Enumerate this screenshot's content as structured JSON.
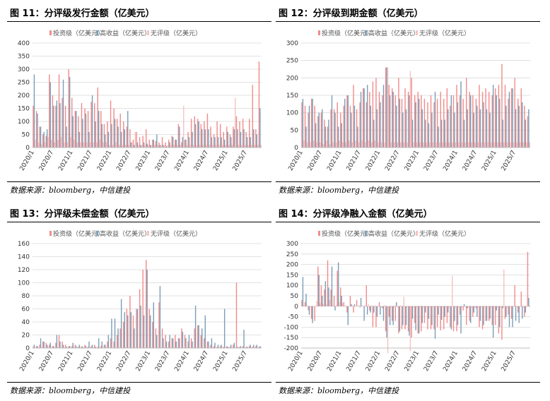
{
  "source_text": "数据来源：bloomberg，中信建投",
  "colors": {
    "investment_grade": "#f08c8c",
    "high_yield": "#7c9fb8",
    "unrated": "#f7c2c2"
  },
  "chart_data": [
    {
      "id": "fig11",
      "title": "图 11：分评级发行金额（亿美元）",
      "type": "bar",
      "ylim": [
        0,
        400
      ],
      "yticks": [
        "0",
        "50",
        "100",
        "150",
        "200",
        "250",
        "300",
        "350",
        "400"
      ],
      "x_ticklabels": [
        "2020/1",
        "2020/7",
        "2021/1",
        "2021/7",
        "2022/1",
        "2022/7",
        "2023/1",
        "2023/7",
        "2024/1",
        "2024/7",
        "2025/1",
        "2025/7"
      ],
      "x_start_month": "2020/1",
      "months": 71,
      "legend": [
        "投资级（亿美元）",
        "高收益（亿美元）",
        "无评级（亿美元）"
      ],
      "series": [
        {
          "name": "投资级（亿美元）",
          "values": [
            160,
            140,
            80,
            50,
            45,
            280,
            200,
            160,
            280,
            190,
            160,
            300,
            190,
            140,
            120,
            170,
            150,
            140,
            175,
            170,
            230,
            140,
            90,
            100,
            180,
            150,
            110,
            130,
            100,
            80,
            70,
            30,
            60,
            40,
            45,
            70,
            30,
            30,
            25,
            20,
            40,
            20,
            30,
            45,
            30,
            90,
            20,
            30,
            60,
            110,
            120,
            110,
            90,
            100,
            130,
            80,
            50,
            100,
            90,
            60,
            80,
            50,
            80,
            120,
            100,
            110,
            60,
            110,
            240,
            70,
            330
          ]
        },
        {
          "name": "高收益（亿美元）",
          "values": [
            280,
            130,
            80,
            60,
            70,
            250,
            160,
            180,
            170,
            260,
            80,
            270,
            120,
            140,
            60,
            110,
            130,
            60,
            200,
            100,
            140,
            90,
            50,
            60,
            90,
            110,
            80,
            60,
            70,
            140,
            20,
            10,
            20,
            10,
            20,
            15,
            10,
            30,
            50,
            10,
            10,
            5,
            20,
            40,
            30,
            80,
            40,
            30,
            40,
            60,
            90,
            100,
            70,
            70,
            70,
            40,
            40,
            40,
            40,
            30,
            60,
            40,
            70,
            70,
            60,
            70,
            40,
            40,
            70,
            50,
            150
          ]
        },
        {
          "name": "无评级（亿美元）",
          "values": [
            30,
            20,
            15,
            20,
            40,
            30,
            20,
            30,
            40,
            20,
            20,
            40,
            30,
            20,
            20,
            20,
            20,
            20,
            20,
            20,
            30,
            20,
            20,
            10,
            10,
            20,
            10,
            10,
            10,
            10,
            20,
            60,
            10,
            10,
            10,
            10,
            10,
            10,
            10,
            10,
            10,
            10,
            10,
            10,
            10,
            10,
            160,
            10,
            10,
            10,
            10,
            10,
            10,
            10,
            10,
            10,
            10,
            10,
            10,
            10,
            10,
            10,
            190,
            10,
            10,
            10,
            10,
            10,
            10,
            10,
            10
          ]
        }
      ]
    },
    {
      "id": "fig12",
      "title": "图 12：分评级到期金额（亿美元）",
      "type": "bar",
      "ylim": [
        0,
        300
      ],
      "yticks": [
        "0",
        "50",
        "100",
        "150",
        "200",
        "250",
        "300"
      ],
      "x_ticklabels": [
        "2020/1",
        "2020/7",
        "2021/1",
        "2021/7",
        "2022/1",
        "2022/7",
        "2023/1",
        "2023/7",
        "2024/1",
        "2024/7",
        "2025/1",
        "2025/7"
      ],
      "x_start_month": "2020/1",
      "months": 71,
      "legend": [
        "投资级（亿美元）",
        "高收益（亿美元）",
        "无评级（亿美元）"
      ],
      "series": [
        {
          "name": "投资级（亿美元）",
          "values": [
            130,
            120,
            100,
            140,
            120,
            90,
            100,
            80,
            60,
            110,
            110,
            130,
            100,
            120,
            150,
            120,
            180,
            110,
            130,
            170,
            130,
            160,
            190,
            200,
            160,
            150,
            230,
            180,
            170,
            150,
            200,
            140,
            170,
            160,
            200,
            150,
            160,
            150,
            140,
            130,
            150,
            130,
            140,
            160,
            140,
            170,
            120,
            150,
            180,
            150,
            140,
            200,
            160,
            150,
            140,
            180,
            160,
            170,
            160,
            150,
            170,
            180,
            240,
            180,
            140,
            170,
            200,
            140,
            170,
            120,
            90
          ]
        },
        {
          "name": "高收益（亿美元）",
          "values": [
            140,
            60,
            120,
            140,
            70,
            100,
            110,
            60,
            80,
            150,
            100,
            60,
            70,
            140,
            150,
            100,
            120,
            60,
            160,
            170,
            180,
            120,
            80,
            110,
            130,
            180,
            230,
            150,
            160,
            120,
            140,
            100,
            110,
            150,
            80,
            130,
            140,
            110,
            80,
            70,
            100,
            160,
            60,
            80,
            80,
            110,
            150,
            100,
            130,
            190,
            80,
            110,
            150,
            100,
            120,
            110,
            130,
            110,
            100,
            180,
            150,
            140,
            80,
            120,
            160,
            170,
            110,
            120,
            130,
            80,
            110
          ]
        },
        {
          "name": "无评级（亿美元）",
          "values": [
            20,
            15,
            15,
            20,
            15,
            15,
            10,
            20,
            10,
            15,
            15,
            20,
            15,
            15,
            20,
            15,
            20,
            15,
            20,
            15,
            20,
            15,
            20,
            15,
            15,
            15,
            230,
            15,
            15,
            15,
            15,
            15,
            15,
            220,
            15,
            15,
            15,
            15,
            15,
            15,
            15,
            15,
            15,
            15,
            15,
            15,
            15,
            15,
            15,
            15,
            15,
            15,
            15,
            15,
            15,
            15,
            15,
            15,
            15,
            15,
            15,
            15,
            15,
            15,
            15,
            15,
            15,
            15,
            15,
            15,
            15
          ]
        }
      ]
    },
    {
      "id": "fig13",
      "title": "图 13：分评级未偿金额（亿美元）",
      "type": "bar",
      "ylim": [
        0,
        160
      ],
      "yticks": [
        "0",
        "20",
        "40",
        "60",
        "80",
        "100",
        "120",
        "140",
        "160"
      ],
      "x_ticklabels": [
        "2020/1",
        "2020/7",
        "2021/1",
        "2021/7",
        "2022/1",
        "2022/7",
        "2023/1",
        "2023/7",
        "2024/1",
        "2024/7",
        "2025/1",
        "2025/7"
      ],
      "x_start_month": "2020/1",
      "months": 71,
      "legend": [
        "投资级（亿美元）",
        "高收益（亿美元）",
        "无评级（亿美元）"
      ],
      "series": [
        {
          "name": "投资级（亿美元）",
          "values": [
            2,
            3,
            5,
            10,
            8,
            5,
            3,
            8,
            20,
            10,
            5,
            3,
            3,
            5,
            2,
            3,
            5,
            2,
            3,
            5,
            2,
            3,
            5,
            10,
            15,
            10,
            20,
            30,
            40,
            60,
            80,
            50,
            60,
            90,
            120,
            135,
            60,
            40,
            30,
            70,
            30,
            20,
            10,
            15,
            20,
            15,
            30,
            20,
            10,
            15,
            30,
            35,
            20,
            15,
            10,
            5,
            3,
            2,
            3,
            2,
            3,
            2,
            5,
            100,
            2,
            3,
            2,
            3,
            2,
            3,
            2
          ]
        },
        {
          "name": "高收益（亿美元）",
          "values": [
            5,
            3,
            15,
            10,
            5,
            8,
            3,
            20,
            10,
            5,
            2,
            3,
            8,
            3,
            5,
            2,
            3,
            10,
            5,
            2,
            15,
            10,
            5,
            20,
            45,
            45,
            30,
            75,
            55,
            50,
            55,
            30,
            60,
            65,
            50,
            120,
            50,
            70,
            20,
            95,
            15,
            10,
            20,
            15,
            10,
            15,
            25,
            15,
            20,
            10,
            65,
            35,
            30,
            50,
            10,
            15,
            8,
            5,
            5,
            60,
            2,
            5,
            8,
            2,
            3,
            28,
            2,
            5,
            5,
            5,
            3
          ]
        },
        {
          "name": "无评级（亿美元）",
          "values": [
            1,
            1,
            1,
            1,
            1,
            1,
            1,
            1,
            1,
            1,
            1,
            1,
            1,
            1,
            1,
            1,
            1,
            1,
            1,
            1,
            1,
            1,
            1,
            1,
            1,
            1,
            1,
            1,
            1,
            1,
            1,
            1,
            1,
            1,
            1,
            1,
            1,
            1,
            1,
            1,
            1,
            1,
            1,
            1,
            1,
            1,
            1,
            1,
            1,
            1,
            1,
            1,
            1,
            1,
            1,
            1,
            1,
            1,
            1,
            1,
            1,
            1,
            1,
            1,
            1,
            1,
            1,
            1,
            1,
            1,
            1
          ]
        }
      ]
    },
    {
      "id": "fig14",
      "title": "图 14：分评级净融入金额（亿美元）",
      "type": "bar",
      "ylim": [
        -200,
        300
      ],
      "yticks": [
        "-200",
        "-150",
        "-100",
        "-50",
        "0",
        "50",
        "100",
        "150",
        "200",
        "250",
        "300"
      ],
      "x_ticklabels": [
        "2020/1",
        "2020/7",
        "2021/1",
        "2021/7",
        "2022/1",
        "2022/7",
        "2023/1",
        "2023/7",
        "2024/1",
        "2024/7",
        "2025/1",
        "2025/7"
      ],
      "x_start_month": "2020/1",
      "months": 71,
      "legend": [
        "投资级（亿美元）",
        "高收益（亿美元）",
        "无评级（亿美元）"
      ],
      "series": [
        {
          "name": "投资级（亿美元）",
          "values": [
            30,
            20,
            -20,
            -60,
            -70,
            190,
            100,
            80,
            220,
            80,
            50,
            170,
            90,
            20,
            -30,
            50,
            -30,
            30,
            -5,
            0,
            100,
            -20,
            -100,
            -100,
            20,
            -10,
            -120,
            -50,
            -70,
            -70,
            -130,
            -110,
            -110,
            -120,
            -150,
            -80,
            -130,
            -120,
            -80,
            -110,
            -110,
            -110,
            -100,
            -115,
            -110,
            -80,
            -100,
            -120,
            -120,
            -40,
            -20,
            -90,
            -70,
            -50,
            -10,
            -100,
            -110,
            -70,
            -70,
            -90,
            -90,
            -130,
            -160,
            -60,
            -40,
            -60,
            100,
            -30,
            70,
            -50,
            260
          ]
        },
        {
          "name": "高收益（亿美元）",
          "values": [
            140,
            60,
            -40,
            -80,
            0,
            150,
            50,
            120,
            90,
            190,
            -20,
            210,
            50,
            0,
            -90,
            10,
            10,
            0,
            40,
            -70,
            -40,
            -30,
            -30,
            -50,
            -40,
            -70,
            -150,
            -90,
            -90,
            20,
            -120,
            -90,
            -90,
            -140,
            -60,
            -115,
            -130,
            -80,
            -30,
            -60,
            -90,
            -155,
            -40,
            -65,
            -50,
            -30,
            -110,
            -70,
            -90,
            -130,
            10,
            -10,
            -80,
            -30,
            -50,
            -70,
            -90,
            -70,
            -60,
            -150,
            -20,
            -100,
            -10,
            -50,
            -100,
            -100,
            -70,
            -80,
            -60,
            -30,
            40
          ]
        },
        {
          "name": "无评级（亿美元）",
          "values": [
            5,
            5,
            -5,
            0,
            25,
            15,
            10,
            10,
            30,
            5,
            5,
            20,
            15,
            5,
            0,
            5,
            0,
            5,
            5,
            5,
            10,
            5,
            5,
            -5,
            -5,
            5,
            -225,
            -5,
            -5,
            -5,
            5,
            45,
            -5,
            -215,
            -5,
            -5,
            -5,
            -5,
            -5,
            -5,
            -5,
            -5,
            -5,
            -5,
            -5,
            -5,
            145,
            -5,
            -5,
            -5,
            -5,
            -5,
            -5,
            -5,
            -5,
            -5,
            -5,
            -5,
            -5,
            -5,
            -5,
            -5,
            175,
            -5,
            -5,
            -5,
            -5,
            -5,
            -5,
            -5,
            -5
          ]
        }
      ]
    }
  ]
}
